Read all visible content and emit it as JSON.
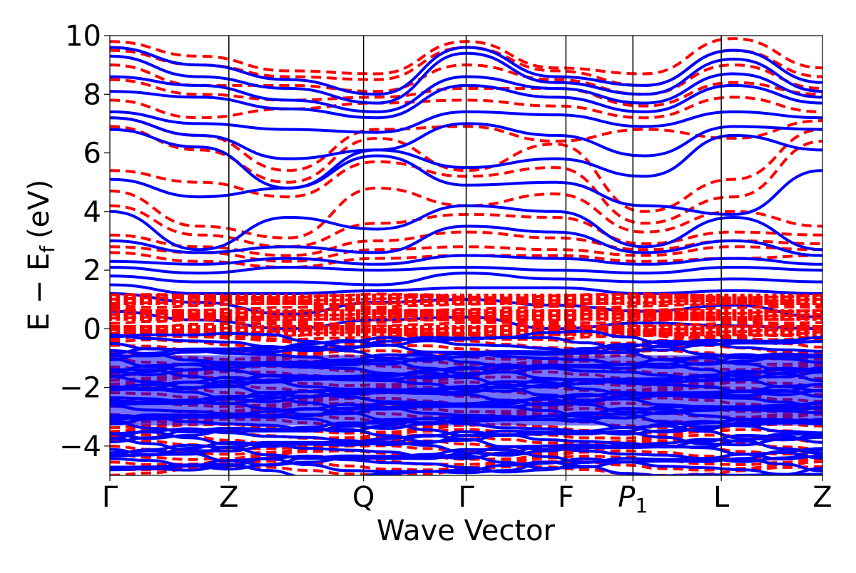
{
  "chart_data": {
    "type": "line",
    "xlabel": "Wave Vector",
    "ylabel_main": "E − E",
    "ylabel_sub": "f",
    "ylabel_unit": "(eV)",
    "ylim": [
      -5,
      10
    ],
    "yticks": [
      -4,
      -2,
      0,
      2,
      4,
      6,
      8,
      10
    ],
    "ytick_labels": [
      "−4",
      "−2",
      "0",
      "2",
      "4",
      "6",
      "8",
      "10"
    ],
    "xlim": [
      0,
      1
    ],
    "kpoints": [
      {
        "label": "Γ",
        "x": 0.0
      },
      {
        "label": "Z",
        "x": 0.167
      },
      {
        "label": "Q",
        "x": 0.356
      },
      {
        "label": "Γ",
        "x": 0.5
      },
      {
        "label": "F",
        "x": 0.64
      },
      {
        "label": "P",
        "sub": "1",
        "x": 0.734
      },
      {
        "label": "L",
        "x": 0.858
      },
      {
        "label": "Z",
        "x": 1.0
      }
    ],
    "series": [
      {
        "style": "dashed",
        "color": "#ff0000",
        "note_bands": [
          [
            9.8,
            9.3,
            8.8,
            8.7,
            9.8,
            8.9,
            8.7,
            9.9,
            8.9
          ],
          [
            9.5,
            9.0,
            8.6,
            8.5,
            9.6,
            8.8,
            8.3,
            9.5,
            8.6
          ],
          [
            9.0,
            8.3,
            8.3,
            8.1,
            9.0,
            8.5,
            8.0,
            9.0,
            8.2
          ],
          [
            8.5,
            8.0,
            7.8,
            7.9,
            8.2,
            8.2,
            7.6,
            8.4,
            8.0
          ],
          [
            7.8,
            7.2,
            7.5,
            7.7,
            7.8,
            7.6,
            7.2,
            7.9,
            7.4
          ],
          [
            7.2,
            6.6,
            5.4,
            6.8,
            6.9,
            6.4,
            6.8,
            6.5,
            7.1
          ],
          [
            6.9,
            6.1,
            5.0,
            6.5,
            5.4,
            6.3,
            4.0,
            5.1,
            6.8
          ],
          [
            5.4,
            5.0,
            4.5,
            5.7,
            5.2,
            5.5,
            3.6,
            4.5,
            6.4
          ],
          [
            4.7,
            3.5,
            3.1,
            4.8,
            4.2,
            4.6,
            3.3,
            4.0,
            3.5
          ],
          [
            4.2,
            3.2,
            2.8,
            3.6,
            3.9,
            3.8,
            2.9,
            3.3,
            3.2
          ],
          [
            3.2,
            2.8,
            2.5,
            3.0,
            3.3,
            3.1,
            2.7,
            3.0,
            2.9
          ],
          [
            2.8,
            2.6,
            2.3,
            2.7,
            2.8,
            2.7,
            2.5,
            2.8,
            2.7
          ],
          [
            2.6,
            2.3,
            2.1,
            2.4,
            2.5,
            2.5,
            2.3,
            2.4,
            2.5
          ]
        ]
      },
      {
        "style": "solid",
        "color": "#0000ff",
        "note_bands": [
          [
            9.6,
            9.0,
            8.5,
            8.0,
            9.6,
            8.6,
            8.3,
            9.5,
            8.4
          ],
          [
            9.3,
            8.6,
            8.2,
            7.7,
            9.4,
            8.4,
            8.0,
            9.2,
            8.1
          ],
          [
            8.6,
            8.3,
            7.8,
            7.4,
            8.6,
            8.2,
            7.7,
            8.7,
            7.9
          ],
          [
            8.1,
            7.9,
            7.5,
            7.2,
            8.3,
            7.9,
            7.4,
            8.3,
            7.7
          ],
          [
            7.4,
            7.0,
            6.8,
            6.7,
            7.4,
            7.3,
            6.9,
            7.4,
            7.2
          ],
          [
            7.2,
            6.6,
            5.8,
            6.1,
            7.0,
            6.6,
            5.9,
            6.9,
            6.8
          ],
          [
            6.8,
            6.2,
            4.8,
            6.1,
            5.5,
            5.8,
            5.2,
            6.6,
            6.1
          ],
          [
            5.1,
            4.5,
            4.8,
            5.9,
            4.9,
            5.0,
            4.2,
            3.9,
            5.4
          ],
          [
            4.0,
            2.7,
            3.8,
            3.4,
            4.2,
            4.0,
            2.8,
            3.8,
            2.7
          ],
          [
            3.0,
            2.6,
            2.8,
            2.6,
            3.5,
            3.3,
            2.6,
            3.0,
            2.5
          ],
          [
            2.3,
            2.2,
            2.4,
            2.2,
            2.5,
            2.4,
            2.2,
            2.4,
            2.2
          ],
          [
            2.1,
            1.9,
            2.1,
            2.0,
            2.1,
            2.0,
            1.9,
            2.1,
            2.0
          ],
          [
            1.8,
            1.6,
            1.6,
            1.5,
            1.9,
            1.7,
            1.6,
            1.7,
            1.6
          ],
          [
            1.5,
            1.2,
            1.2,
            1.3,
            1.4,
            1.4,
            1.2,
            1.3,
            1.2
          ],
          [
            1.2,
            0.9,
            0.5,
            0.9,
            1.0,
            0.8,
            0.6,
            0.8,
            0.4
          ],
          [
            0.6,
            0.3,
            0.0,
            0.3,
            0.4,
            0.0,
            0.2,
            0.1,
            0.0
          ]
        ]
      }
    ],
    "grid": false,
    "legend": "none"
  }
}
